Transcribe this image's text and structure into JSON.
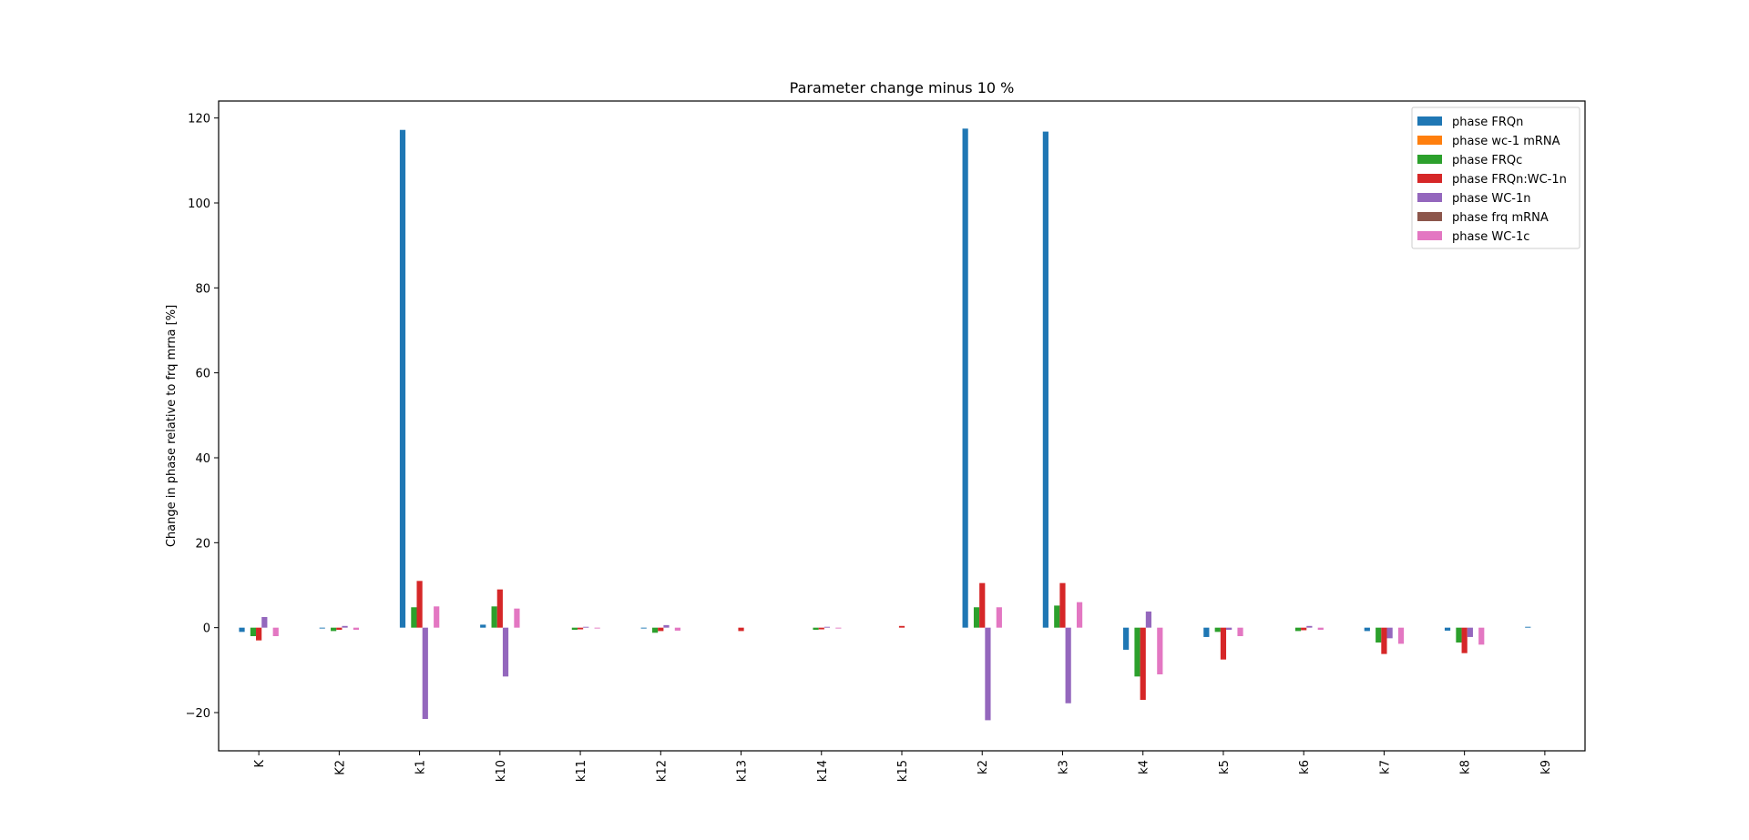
{
  "chart_data": {
    "type": "bar",
    "title": "Parameter change minus 10 %",
    "xlabel": "",
    "ylabel": "Change in phase relative to frq mrna [%]",
    "ylim": [
      -29,
      124
    ],
    "yticks": [
      -20,
      0,
      20,
      40,
      60,
      80,
      100,
      120
    ],
    "grid": false,
    "legend_placement": "top-right",
    "categories": [
      "K",
      "K2",
      "k1",
      "k10",
      "k11",
      "k12",
      "k13",
      "k14",
      "k15",
      "k2",
      "k3",
      "k4",
      "k5",
      "k6",
      "k7",
      "k8",
      "k9"
    ],
    "series": [
      {
        "name": "phase FRQn",
        "color": "#1f77b4",
        "values": [
          -1.0,
          -0.2,
          117.2,
          0.7,
          0.0,
          -0.2,
          0.0,
          0.0,
          0.0,
          117.5,
          116.8,
          -5.2,
          -2.2,
          0.0,
          -0.8,
          -0.7,
          0.2
        ]
      },
      {
        "name": "phase wc-1 mRNA",
        "color": "#ff7f0e",
        "values": [
          0,
          0,
          0,
          0,
          0,
          0,
          0,
          0,
          0,
          0,
          0,
          0,
          0,
          0,
          0,
          0,
          0
        ]
      },
      {
        "name": "phase FRQc",
        "color": "#2ca02c",
        "values": [
          -2.0,
          -0.8,
          4.8,
          5.0,
          -0.5,
          -1.2,
          0.0,
          -0.5,
          0.0,
          4.8,
          5.2,
          -11.5,
          -1.0,
          -0.8,
          -3.5,
          -3.5,
          0.0
        ]
      },
      {
        "name": "phase FRQn:WC-1n",
        "color": "#d62728",
        "values": [
          -3.0,
          -0.5,
          11.0,
          9.0,
          -0.4,
          -0.8,
          -0.8,
          -0.4,
          0.4,
          10.5,
          10.5,
          -17.0,
          -7.5,
          -0.6,
          -6.2,
          -6.0,
          0.0
        ]
      },
      {
        "name": "phase WC-1n",
        "color": "#9467bd",
        "values": [
          2.5,
          0.4,
          -21.5,
          -11.5,
          0.2,
          0.6,
          0.0,
          0.2,
          0.0,
          -21.8,
          -17.8,
          3.8,
          -0.5,
          0.4,
          -2.5,
          -2.2,
          0.0
        ]
      },
      {
        "name": "phase frq mRNA",
        "color": "#8c564b",
        "values": [
          0,
          0,
          0,
          0,
          0,
          0,
          0,
          0,
          0,
          0,
          0,
          0,
          0,
          0,
          0,
          0,
          0
        ]
      },
      {
        "name": "phase WC-1c",
        "color": "#e377c2",
        "values": [
          -2.0,
          -0.5,
          5.0,
          4.5,
          -0.2,
          -0.7,
          0.0,
          -0.2,
          0.0,
          4.8,
          6.0,
          -11.0,
          -2.0,
          -0.5,
          -3.8,
          -4.0,
          0.0
        ]
      }
    ]
  }
}
